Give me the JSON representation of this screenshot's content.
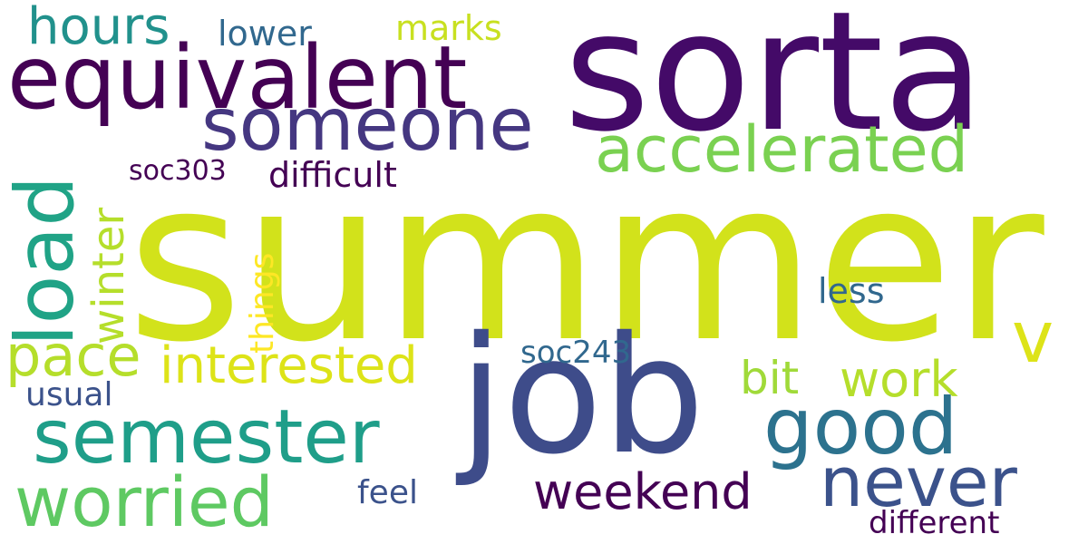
{
  "words": {
    "summer": {
      "text": "summer",
      "color": "#d2e21b"
    },
    "sorta": {
      "text": "sorta",
      "color": "#440a68"
    },
    "job": {
      "text": "job",
      "color": "#3e4c8a"
    },
    "equivalent": {
      "text": "equivalent",
      "color": "#440154"
    },
    "someone": {
      "text": "someone",
      "color": "#453781"
    },
    "accelerated": {
      "text": "accelerated",
      "color": "#7ad151"
    },
    "load": {
      "text": "load",
      "color": "#20a386"
    },
    "semester": {
      "text": "semester",
      "color": "#1f9e89"
    },
    "good": {
      "text": "good",
      "color": "#2c728e"
    },
    "never": {
      "text": "never",
      "color": "#3b528b"
    },
    "worried": {
      "text": "worried",
      "color": "#5ec962"
    },
    "pace": {
      "text": "pace",
      "color": "#b5de2b"
    },
    "interested": {
      "text": "interested",
      "color": "#dde318"
    },
    "weekend": {
      "text": "weekend",
      "color": "#440154"
    },
    "winter": {
      "text": "winter",
      "color": "#b5de2b"
    },
    "hours": {
      "text": "hours",
      "color": "#21918c"
    },
    "work": {
      "text": "work",
      "color": "#b5de2b"
    },
    "bit": {
      "text": "bit",
      "color": "#a0da39"
    },
    "v": {
      "text": "v",
      "color": "#dde318"
    },
    "difficult": {
      "text": "difficult",
      "color": "#440154"
    },
    "things": {
      "text": "things",
      "color": "#fde725"
    },
    "soc303": {
      "text": "soc303",
      "color": "#440154"
    },
    "soc243": {
      "text": "soc243",
      "color": "#31688e"
    },
    "marks": {
      "text": "marks",
      "color": "#c8e020"
    },
    "lower": {
      "text": "lower",
      "color": "#31688e"
    },
    "less": {
      "text": "less",
      "color": "#31688e"
    },
    "usual": {
      "text": "usual",
      "color": "#3b528b"
    },
    "feel": {
      "text": "feel",
      "color": "#3b528b"
    },
    "different": {
      "text": "different",
      "color": "#440154"
    }
  }
}
